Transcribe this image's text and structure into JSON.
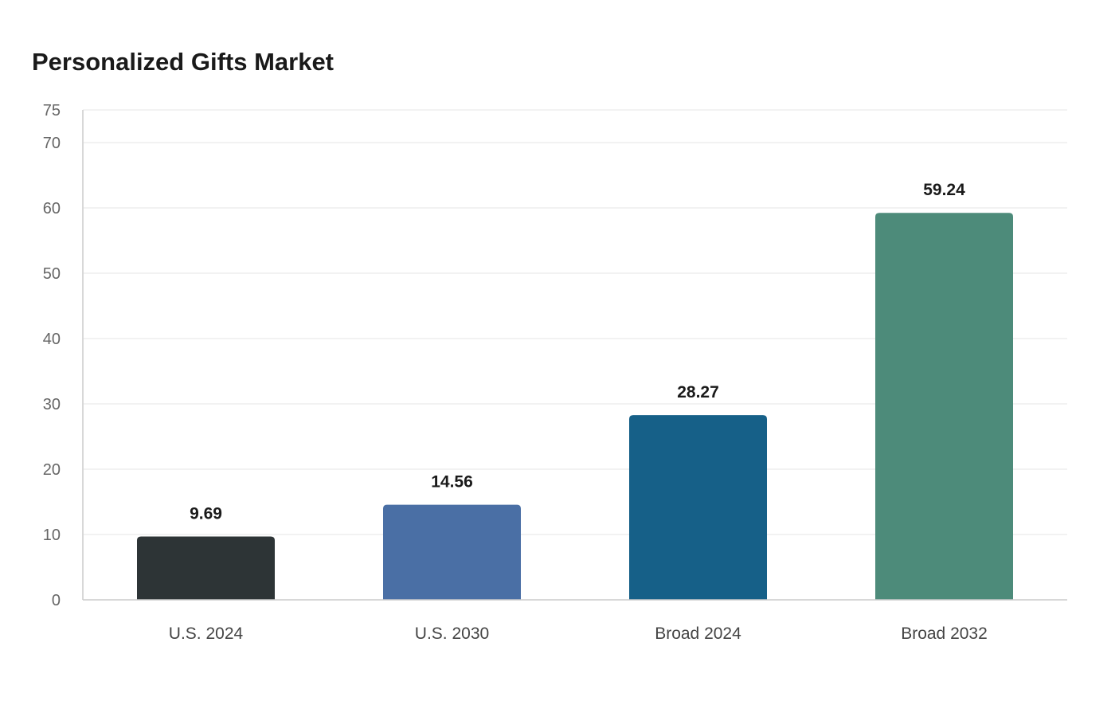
{
  "chart_data": {
    "type": "bar",
    "title": "Personalized Gifts Market",
    "categories": [
      "U.S. 2024",
      "U.S. 2030",
      "Broad 2024",
      "Broad 2032"
    ],
    "values": [
      9.69,
      14.56,
      28.27,
      59.24
    ],
    "colors": [
      "#2d3436",
      "#4a6fa5",
      "#166088",
      "#4d8b7a"
    ],
    "ylim": [
      0,
      75
    ],
    "yticks": [
      0,
      10,
      20,
      30,
      40,
      50,
      60,
      70,
      75
    ],
    "xlabel": "",
    "ylabel": "",
    "grid": true,
    "legend": "none"
  }
}
